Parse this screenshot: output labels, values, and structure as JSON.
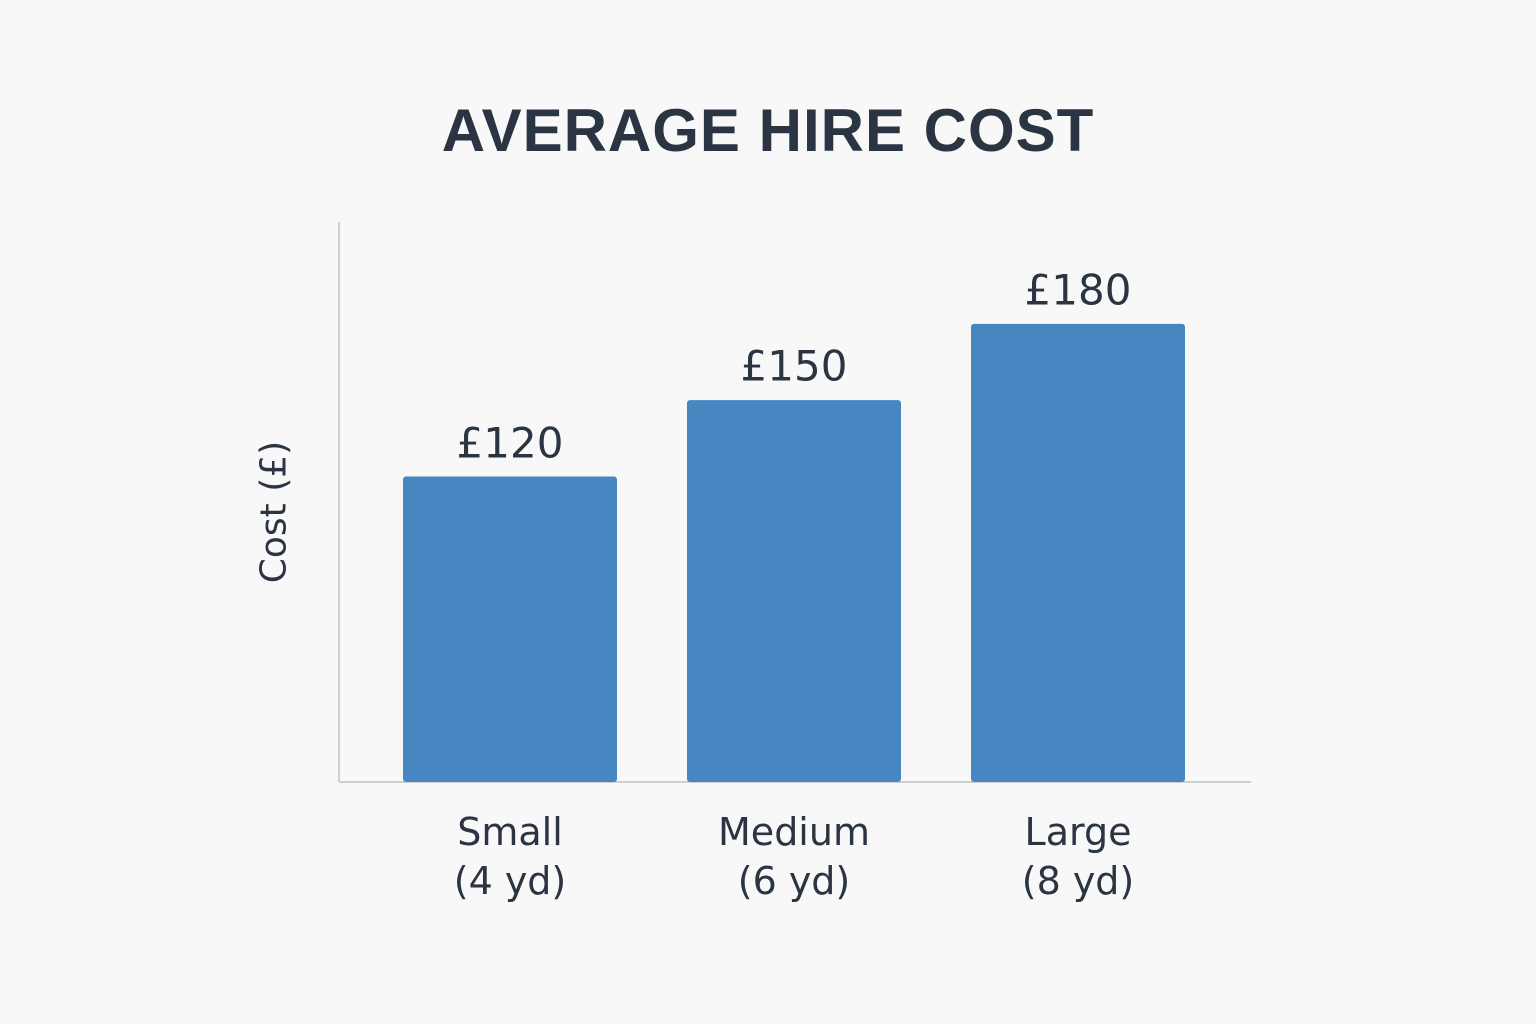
{
  "chart_data": {
    "type": "bar",
    "title": "AVERAGE HIRE COST",
    "y_label": "Cost (£)",
    "categories": [
      "Small\n(4 yd)",
      "Medium\n(6 yd)",
      "Large\n(8 yd)"
    ],
    "values": [
      120,
      150,
      180
    ],
    "value_labels": [
      "£120",
      "£150",
      "£180"
    ],
    "color": "#4687c2",
    "ylim": [
      0,
      220
    ]
  }
}
